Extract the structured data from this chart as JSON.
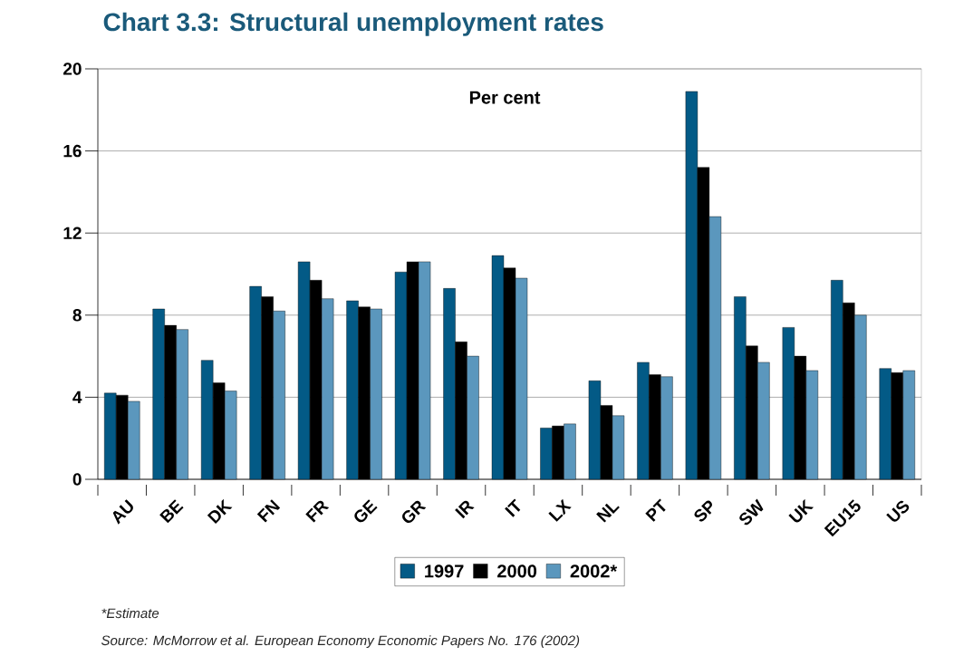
{
  "chart_data": {
    "type": "bar",
    "title": "Chart 3.3: Structural unemployment rates",
    "ylabel": "Per cent",
    "categories": [
      "AU",
      "BE",
      "DK",
      "FN",
      "FR",
      "GE",
      "GR",
      "IR",
      "IT",
      "LX",
      "NL",
      "PT",
      "SP",
      "SW",
      "UK",
      "EU15",
      "US"
    ],
    "series": [
      {
        "name": "1997",
        "color": "#035a86",
        "values": [
          4.2,
          8.3,
          5.8,
          9.4,
          10.6,
          8.7,
          10.1,
          9.3,
          10.9,
          2.5,
          4.8,
          5.7,
          18.9,
          8.9,
          7.4,
          9.7,
          5.4
        ]
      },
      {
        "name": "2000",
        "color": "#000000",
        "values": [
          4.1,
          7.5,
          4.7,
          8.9,
          9.7,
          8.4,
          10.6,
          6.7,
          10.3,
          2.6,
          3.6,
          5.1,
          15.2,
          6.5,
          6.0,
          8.6,
          5.2
        ]
      },
      {
        "name": "2002*",
        "color": "#5b97bd",
        "values": [
          3.8,
          7.3,
          4.3,
          8.2,
          8.8,
          8.3,
          10.6,
          6.0,
          9.8,
          2.7,
          3.1,
          5.0,
          12.8,
          5.7,
          5.3,
          8.0,
          5.3
        ]
      }
    ],
    "ylim": [
      0,
      20
    ],
    "yticks": [
      0,
      4,
      8,
      12,
      16,
      20
    ],
    "grid": "y",
    "legend": "bottom",
    "annotations": [
      "*Estimate",
      "Source: McMorrow et al. European Economy Economic Papers No. 176 (2002)"
    ]
  }
}
